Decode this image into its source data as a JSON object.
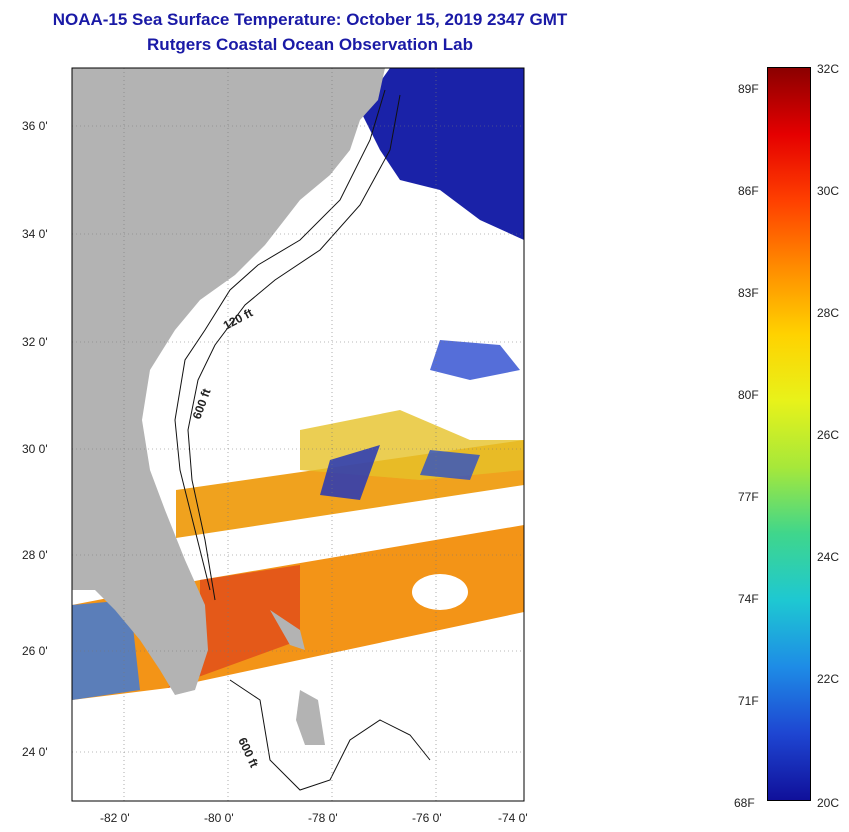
{
  "header": {
    "title": "NOAA-15 Sea Surface Temperature:  October 15, 2019 2347 GMT",
    "subtitle": "Rutgers Coastal Ocean Observation Lab"
  },
  "map": {
    "lat_labels": [
      "36 0'",
      "34 0'",
      "32 0'",
      "30 0'",
      "28 0'",
      "26 0'",
      "24 0'"
    ],
    "lon_labels": [
      "-82 0'",
      "-80 0'",
      "-78 0'",
      "-76 0'",
      "-74 0'"
    ],
    "contour_labels": [
      "120 ft",
      "600 ft",
      "600 ft"
    ],
    "land_color": "#b3b3b3",
    "cloud_color": "#ffffff"
  },
  "colorbar": {
    "f_labels": [
      "89F",
      "86F",
      "83F",
      "80F",
      "77F",
      "74F",
      "71F",
      "68F"
    ],
    "c_labels": [
      "32C",
      "30C",
      "28C",
      "26C",
      "24C",
      "22C",
      "20C"
    ],
    "min_c": 20,
    "max_c": 32
  }
}
